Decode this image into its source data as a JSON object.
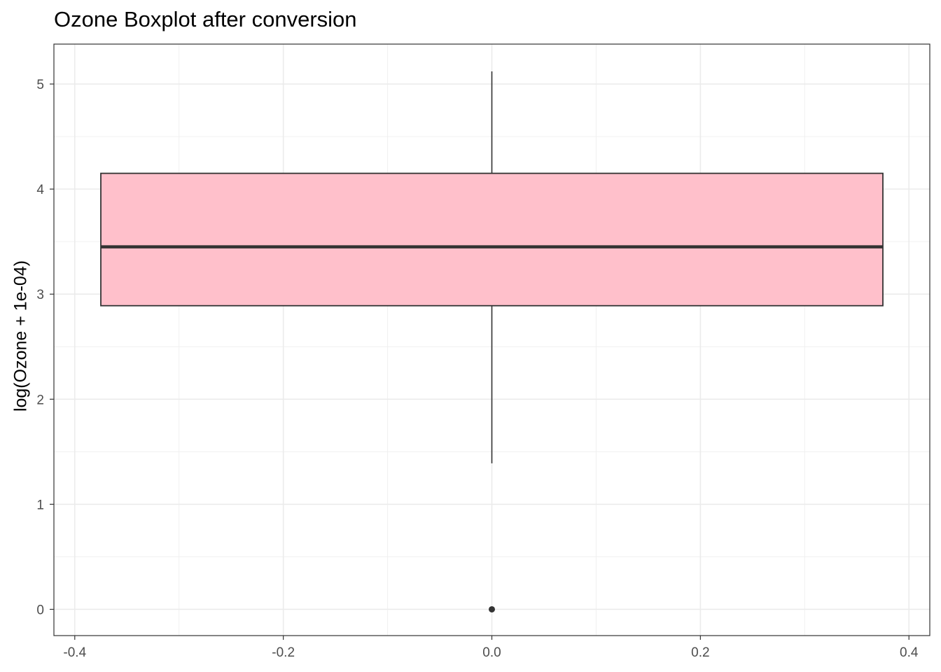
{
  "chart_data": {
    "type": "boxplot",
    "title": "Ozone Boxplot after conversion",
    "xlabel": "",
    "ylabel": "log(Ozone + 1e-04)",
    "xlim": [
      -0.42,
      0.42
    ],
    "ylim": [
      -0.25,
      5.38
    ],
    "x_ticks": [
      -0.4,
      -0.2,
      0.0,
      0.2,
      0.4
    ],
    "x_tick_labels": [
      "-0.4",
      "-0.2",
      "0.0",
      "0.2",
      "0.4"
    ],
    "y_ticks": [
      0,
      1,
      2,
      3,
      4,
      5
    ],
    "y_tick_labels": [
      "0",
      "1",
      "2",
      "3",
      "4",
      "5"
    ],
    "grid": true,
    "box": {
      "x_center": 0.0,
      "x_left": -0.375,
      "x_right": 0.375,
      "whisker_low": 1.39,
      "q1": 2.89,
      "median": 3.45,
      "q3": 4.15,
      "whisker_high": 5.12,
      "outliers": [
        0.0
      ],
      "fill_color": "#FFC0CB",
      "line_color": "#333333"
    }
  }
}
